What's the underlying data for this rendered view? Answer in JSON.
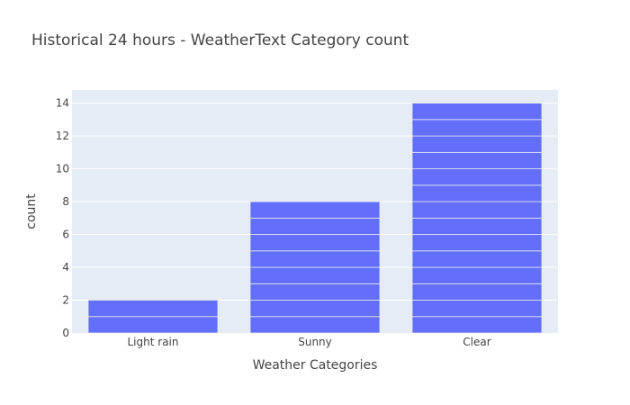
{
  "chart_data": {
    "type": "bar",
    "title": "Historical 24 hours - WeatherText Category count",
    "xlabel": "Weather Categories",
    "ylabel": "count",
    "categories": [
      "Light rain",
      "Sunny",
      "Clear"
    ],
    "values": [
      2,
      8,
      14
    ],
    "ylim": [
      0,
      14.8
    ],
    "yticks": [
      0,
      2,
      4,
      6,
      8,
      10,
      12,
      14
    ],
    "grid": true,
    "legend": "none",
    "stacked_unit_segments": true,
    "colors": {
      "bar": "#636efa",
      "plot_background": "#e5ecf6",
      "grid": "#ffffff",
      "text": "#444444"
    }
  }
}
